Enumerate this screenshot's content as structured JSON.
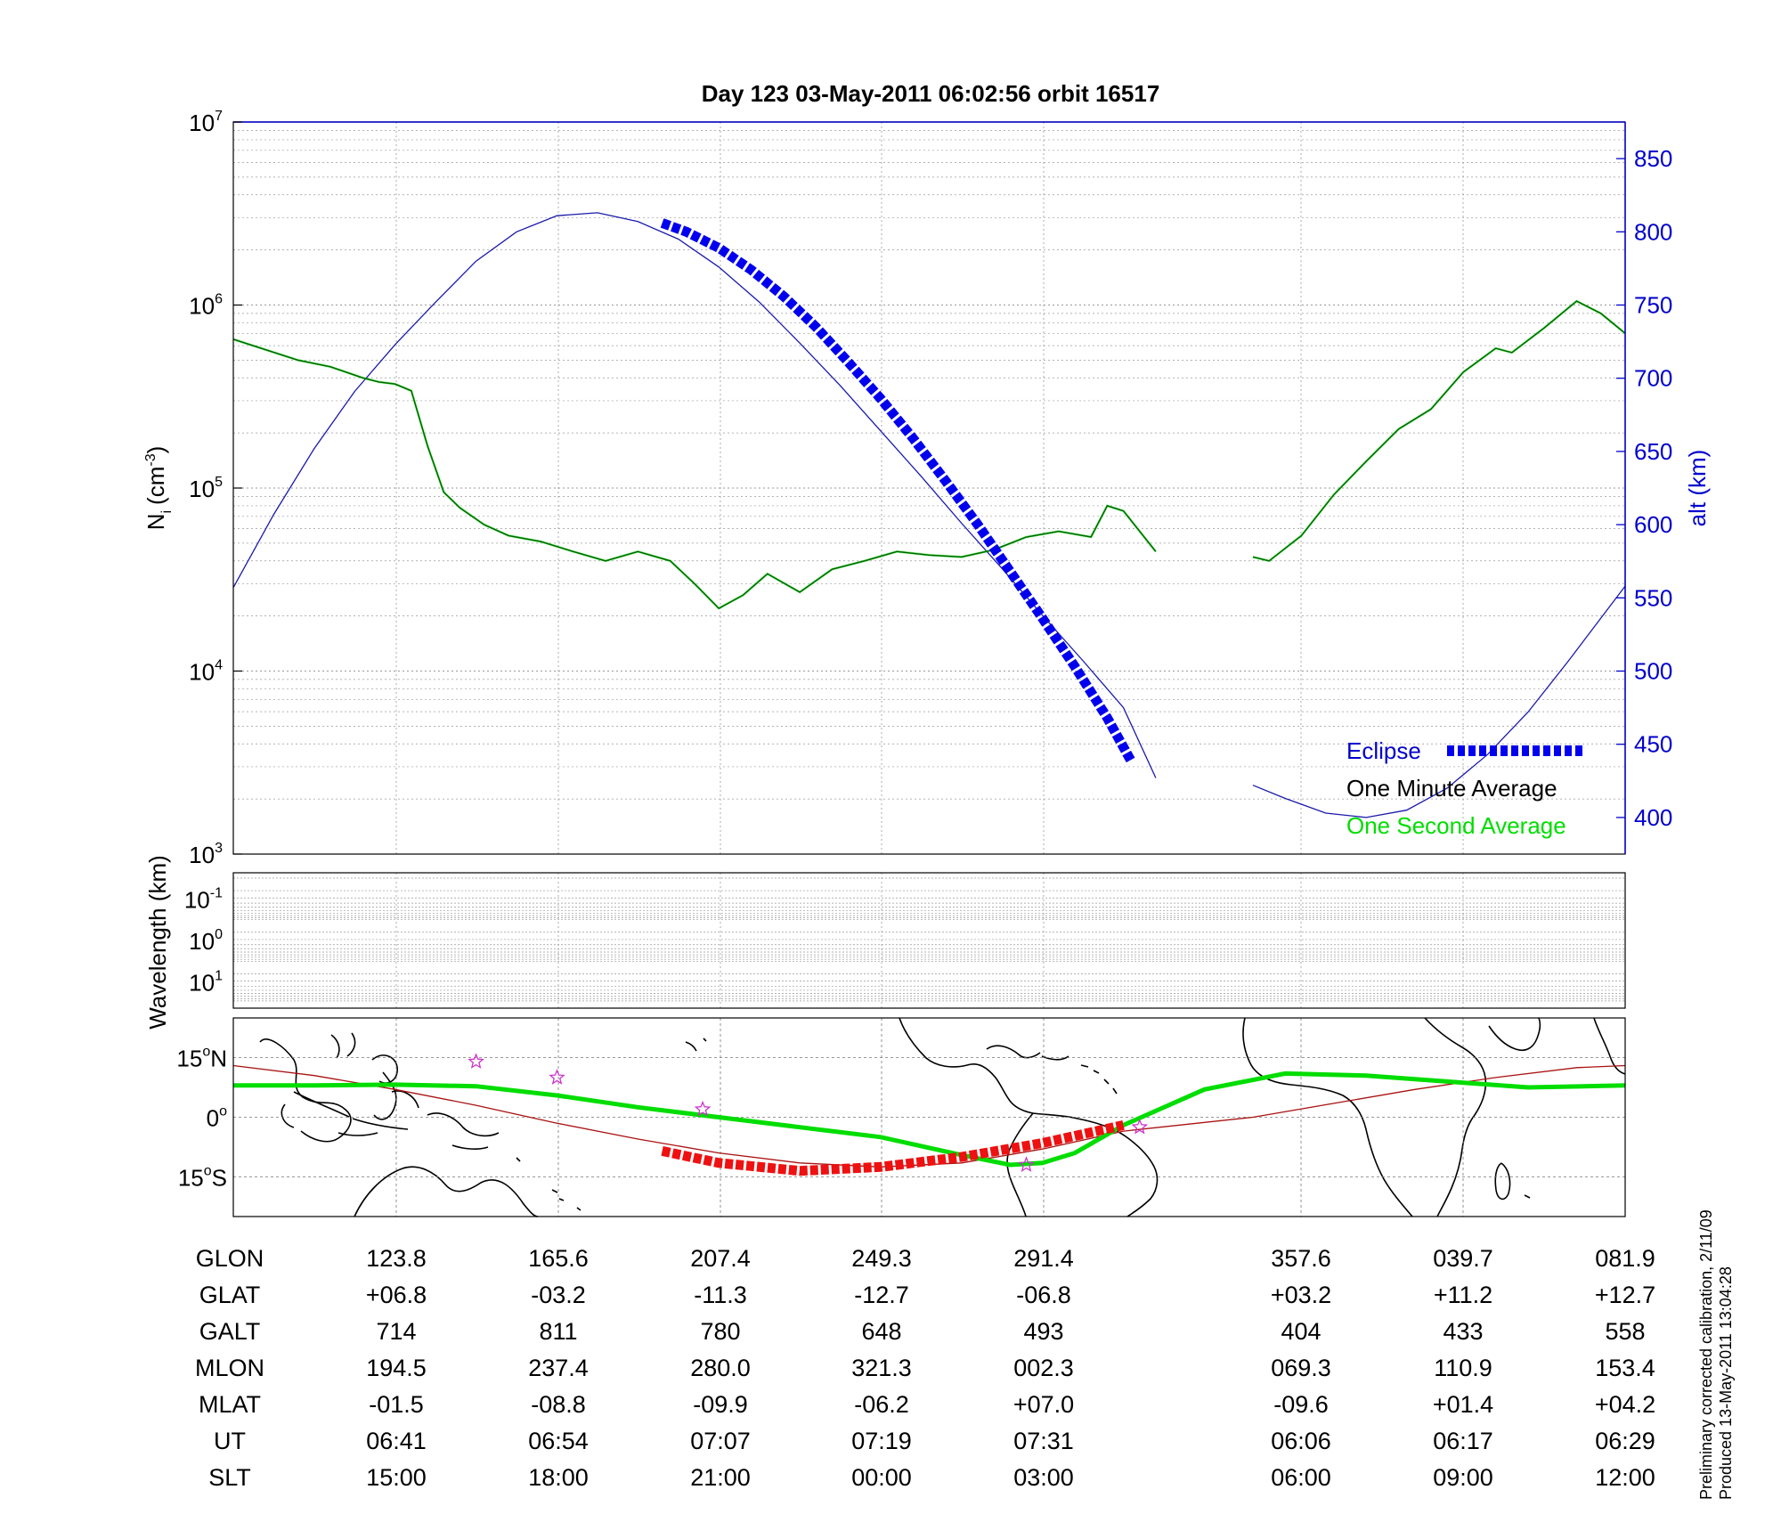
{
  "title": "Day 123  03-May-2011 06:02:56   orbit 16517",
  "footnote": [
    "Preliminary corrected calibration, 2/11/09",
    "Produced 13-May-2011 13:04:28"
  ],
  "colors": {
    "altitude": "#1a1aaa",
    "density": "#006400",
    "density_1s": "#00dd00",
    "eclipse": "#0000ee",
    "track": "#00dd00",
    "track_eclipse": "#ee1111",
    "magnetic_equator": "#aa1111",
    "star": "#cc33cc",
    "alt_axis": "#0000cc"
  },
  "chart_data": [
    {
      "type": "line",
      "panel": "density",
      "ylabel": "N_i (cm^-3)",
      "ylabel_parts": {
        "base": "N",
        "sub": "i",
        "unit": "(cm",
        "exp": "-3",
        "close": ")"
      },
      "yscale": "log",
      "ylim": [
        1000,
        10000000
      ],
      "yticks": [
        {
          "base": "10",
          "exp": "3",
          "v": 1000
        },
        {
          "base": "10",
          "exp": "4",
          "v": 10000
        },
        {
          "base": "10",
          "exp": "5",
          "v": 100000
        },
        {
          "base": "10",
          "exp": "6",
          "v": 1000000
        },
        {
          "base": "10",
          "exp": "7",
          "v": 10000000
        }
      ],
      "y2label": "alt (km)",
      "y2lim": [
        375,
        875
      ],
      "y2ticks": [
        "400",
        "450",
        "500",
        "550",
        "600",
        "650",
        "700",
        "750",
        "800",
        "850"
      ],
      "xlim": [
        0,
        8.6
      ],
      "legend": [
        "Eclipse",
        "One Minute Average",
        "One Second Average"
      ],
      "legend_position": "bottom-right",
      "grid": true,
      "altitude": {
        "name": "alt (km)",
        "x": [
          0,
          0.25,
          0.5,
          0.75,
          1.0,
          1.25,
          1.5,
          1.75,
          2.0,
          2.25,
          2.5,
          2.75,
          3.0,
          3.25,
          3.5,
          3.75,
          4.0,
          4.25,
          4.5,
          4.75,
          5.0,
          5.25,
          5.5,
          5.7
        ],
        "y": [
          557,
          607,
          652,
          691,
          723,
          752,
          780,
          800,
          811,
          813,
          807,
          795,
          776,
          752,
          724,
          695,
          664,
          633,
          601,
          570,
          538,
          507,
          475,
          427
        ]
      },
      "altitude_segment2": {
        "x": [
          6.3,
          6.5,
          6.75,
          7.0,
          7.25,
          7.5,
          7.75,
          8.0,
          8.25,
          8.6
        ],
        "y": [
          422,
          413,
          403,
          400,
          405,
          420,
          443,
          472,
          507,
          558
        ]
      },
      "eclipse": {
        "x": [
          2.65,
          2.8,
          3.0,
          3.2,
          3.4,
          3.6,
          3.8,
          4.0,
          4.2,
          4.4,
          4.6,
          4.8,
          5.0,
          5.2,
          5.4,
          5.55
        ],
        "y": [
          806,
          800,
          789,
          774,
          756,
          735,
          711,
          686,
          659,
          630,
          600,
          568,
          536,
          503,
          468,
          438
        ]
      },
      "density": {
        "name": "One Minute Average",
        "x": [
          0,
          0.2,
          0.4,
          0.6,
          0.8,
          0.9,
          1.0,
          1.1,
          1.2,
          1.3,
          1.4,
          1.55,
          1.7,
          1.9,
          2.1,
          2.3,
          2.5,
          2.7,
          2.85,
          3.0,
          3.15,
          3.3,
          3.5,
          3.7,
          3.9,
          4.1,
          4.3,
          4.5,
          4.7,
          4.9,
          5.1,
          5.3,
          5.4,
          5.5,
          5.6,
          5.7
        ],
        "y": [
          650000,
          570000,
          500000,
          460000,
          400000,
          380000,
          370000,
          340000,
          170000,
          95000,
          78000,
          63000,
          55000,
          51000,
          45000,
          40000,
          45000,
          40000,
          30000,
          22000,
          26000,
          34000,
          27000,
          36000,
          40000,
          45000,
          43000,
          42000,
          46000,
          54000,
          58000,
          54000,
          80000,
          75000,
          58000,
          45000
        ]
      },
      "density_segment2": {
        "x": [
          6.3,
          6.4,
          6.6,
          6.8,
          7.0,
          7.2,
          7.4,
          7.6,
          7.8,
          7.9,
          8.1,
          8.3,
          8.45,
          8.6
        ],
        "y": [
          42000,
          40000,
          55000,
          92000,
          140000,
          210000,
          270000,
          430000,
          580000,
          550000,
          750000,
          1050000,
          900000,
          700000
        ]
      }
    },
    {
      "type": "heatmap",
      "panel": "wavelength",
      "ylabel": "Wavelength (km)",
      "yticks": [
        {
          "base": "10",
          "exp": "-1"
        },
        {
          "base": "10",
          "exp": "0"
        },
        {
          "base": "10",
          "exp": "1"
        }
      ],
      "grid": true
    },
    {
      "type": "line",
      "panel": "map",
      "xlim": [
        0,
        8.6
      ],
      "ylim": [
        -25,
        25
      ],
      "yticks": [
        {
          "label": "15",
          "deg": "o",
          "hemi": "N",
          "v": 15
        },
        {
          "label": "0",
          "deg": "o",
          "hemi": "",
          "v": 0
        },
        {
          "label": "15",
          "deg": "o",
          "hemi": "S",
          "v": -15
        }
      ],
      "track": {
        "name": "satellite ground track",
        "x": [
          0,
          0.5,
          1.0,
          1.5,
          2.0,
          2.5,
          3.0,
          3.5,
          4.0,
          4.5,
          4.8,
          5.0,
          5.2,
          5.5,
          6.0,
          6.5,
          7.0,
          7.5,
          8.0,
          8.6
        ],
        "y": [
          8,
          8,
          8.2,
          7.8,
          5.5,
          2.5,
          0,
          -2.5,
          -5,
          -9.5,
          -12,
          -11.5,
          -9,
          -2,
          7,
          11,
          10.5,
          9,
          7.5,
          8
        ]
      },
      "track_eclipse": {
        "x": [
          2.65,
          3.0,
          3.5,
          4.0,
          4.5,
          5.0,
          5.5
        ],
        "y": [
          -8.5,
          -11.5,
          -13.5,
          -12.5,
          -10,
          -6.5,
          -2
        ]
      },
      "magnetic_equator": {
        "x": [
          0,
          0.5,
          1.0,
          1.5,
          2.0,
          2.5,
          3.0,
          3.5,
          4.0,
          4.5,
          5.0,
          5.5,
          6.3,
          6.8,
          7.3,
          7.8,
          8.3,
          8.6
        ],
        "y": [
          13,
          10.5,
          7,
          3,
          -1.5,
          -5.5,
          -9,
          -11.5,
          -12.5,
          -11.5,
          -8,
          -3.5,
          0,
          3.5,
          7,
          10,
          12.5,
          13
        ]
      },
      "stars": {
        "x": [
          1.5,
          2.0,
          2.9,
          4.9,
          5.6
        ],
        "y": [
          14,
          10,
          2,
          -12,
          -2.5
        ]
      }
    }
  ],
  "table": {
    "row_labels": [
      "GLON",
      "GLAT",
      "GALT",
      "MLON",
      "MLAT",
      "UT",
      "SLT"
    ],
    "columns": [
      [
        "123.8",
        "+06.8",
        "714",
        "194.5",
        "-01.5",
        "06:41",
        "15:00"
      ],
      [
        "165.6",
        "-03.2",
        "811",
        "237.4",
        "-08.8",
        "06:54",
        "18:00"
      ],
      [
        "207.4",
        "-11.3",
        "780",
        "280.0",
        "-09.9",
        "07:07",
        "21:00"
      ],
      [
        "249.3",
        "-12.7",
        "648",
        "321.3",
        "-06.2",
        "07:19",
        "00:00"
      ],
      [
        "291.4",
        "-06.8",
        "493",
        "002.3",
        "+07.0",
        "07:31",
        "03:00"
      ],
      [
        "357.6",
        "+03.2",
        "404",
        "069.3",
        "-09.6",
        "06:06",
        "06:00"
      ],
      [
        "039.7",
        "+11.2",
        "433",
        "110.9",
        "+01.4",
        "06:17",
        "09:00"
      ],
      [
        "081.9",
        "+12.7",
        "558",
        "153.4",
        "+04.2",
        "06:29",
        "12:00"
      ]
    ]
  }
}
